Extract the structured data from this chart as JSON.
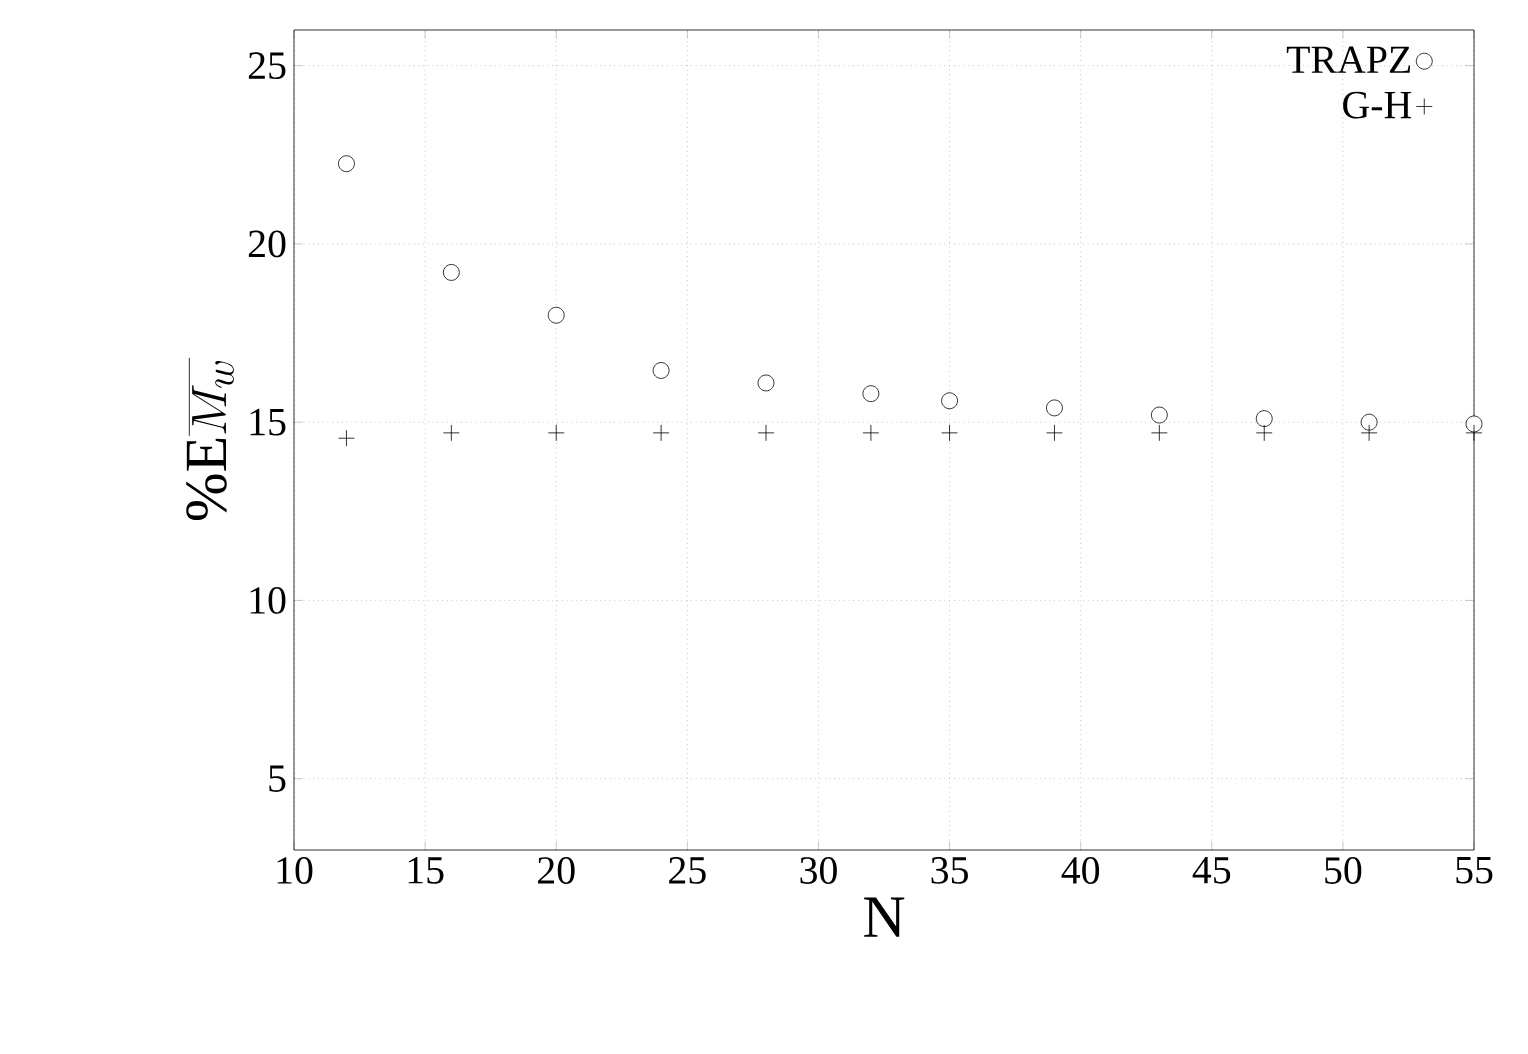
{
  "chart_data": {
    "type": "scatter",
    "xlabel": "N",
    "ylabel": "\\%\\mathrm{E}\\overline{M_w}",
    "x": [
      12,
      16,
      20,
      24,
      28,
      32,
      35,
      39,
      43,
      47,
      51,
      55
    ],
    "series": [
      {
        "name": "TRAPZ",
        "color": "#000000",
        "marker": "circle",
        "values": [
          22.25,
          19.2,
          18.0,
          16.45,
          16.1,
          15.8,
          15.6,
          15.4,
          15.2,
          15.1,
          15.0,
          14.95
        ]
      },
      {
        "name": "G-H",
        "color": "#000000",
        "marker": "cross",
        "values": [
          14.55,
          14.7,
          14.7,
          14.7,
          14.7,
          14.7,
          14.7,
          14.7,
          14.7,
          14.7,
          14.7,
          14.7
        ]
      }
    ],
    "xlim": [
      10,
      55
    ],
    "ylim": [
      3,
      26
    ],
    "xticks": [
      10,
      15,
      20,
      25,
      30,
      35,
      40,
      45,
      50,
      55
    ],
    "yticks": [
      5,
      10,
      15,
      20,
      25
    ],
    "grid": true,
    "legend": "top right"
  }
}
